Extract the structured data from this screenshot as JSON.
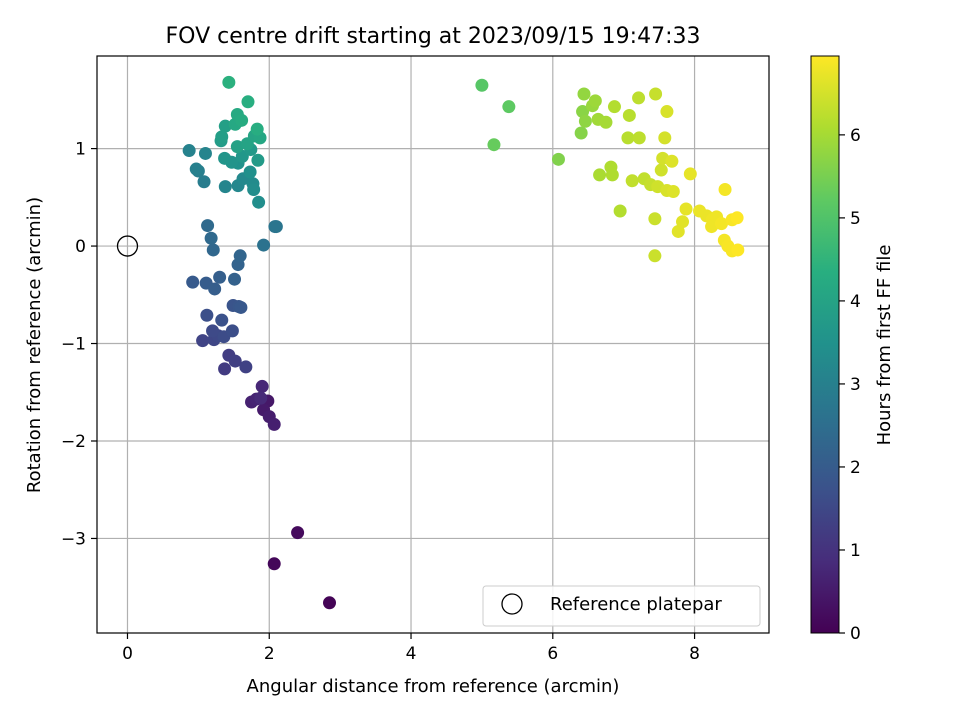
{
  "chart_data": {
    "type": "scatter",
    "title": "FOV centre drift starting at 2023/09/15 19:47:33",
    "xlabel": "Angular distance from reference (arcmin)",
    "ylabel": "Rotation from reference (arcmin)",
    "xlim": [
      -0.43,
      9.05
    ],
    "ylim": [
      -3.97,
      1.95
    ],
    "x_ticks": [
      0,
      2,
      4,
      6,
      8
    ],
    "x_tick_labels": [
      "0",
      "2",
      "4",
      "6",
      "8"
    ],
    "y_ticks": [
      -3,
      -2,
      -1,
      0,
      1
    ],
    "y_tick_labels": [
      "−3",
      "−2",
      "−1",
      "0",
      "1"
    ],
    "grid": true,
    "legend_position": "bottom-right",
    "legend_label": "Reference platepar",
    "reference_point": {
      "x": 0,
      "y": 0
    },
    "colorbar": {
      "label": "Hours from first FF file",
      "colormap": "viridis",
      "range": [
        0,
        6.95
      ],
      "ticks": [
        0,
        1,
        2,
        3,
        4,
        5,
        6
      ],
      "tick_labels": [
        "0",
        "1",
        "2",
        "3",
        "4",
        "5",
        "6"
      ]
    },
    "points": [
      [
        2.85,
        -3.66,
        0.05
      ],
      [
        2.07,
        -3.26,
        0.12
      ],
      [
        2.4,
        -2.94,
        0.18
      ],
      [
        1.98,
        -1.59,
        0.45
      ],
      [
        1.92,
        -1.68,
        0.5
      ],
      [
        2.0,
        -1.75,
        0.55
      ],
      [
        2.07,
        -1.83,
        0.6
      ],
      [
        1.75,
        -1.6,
        0.65
      ],
      [
        1.82,
        -1.57,
        0.7
      ],
      [
        1.9,
        -1.44,
        0.75
      ],
      [
        1.88,
        -1.56,
        0.8
      ],
      [
        1.37,
        -1.26,
        1.2
      ],
      [
        1.43,
        -1.12,
        1.25
      ],
      [
        1.52,
        -1.18,
        1.3
      ],
      [
        1.67,
        -1.24,
        1.35
      ],
      [
        1.06,
        -0.97,
        1.4
      ],
      [
        1.22,
        -0.96,
        1.45
      ],
      [
        1.28,
        -0.92,
        1.5
      ],
      [
        1.2,
        -0.87,
        1.55
      ],
      [
        1.36,
        -0.93,
        1.6
      ],
      [
        1.48,
        -0.87,
        1.65
      ],
      [
        1.12,
        -0.71,
        1.7
      ],
      [
        1.33,
        -0.76,
        1.75
      ],
      [
        1.49,
        -0.61,
        1.8
      ],
      [
        1.57,
        -0.62,
        1.85
      ],
      [
        1.6,
        -0.63,
        1.9
      ],
      [
        0.92,
        -0.37,
        1.95
      ],
      [
        1.11,
        -0.38,
        2.0
      ],
      [
        1.23,
        -0.44,
        2.05
      ],
      [
        1.3,
        -0.32,
        2.1
      ],
      [
        1.51,
        -0.34,
        2.15
      ],
      [
        1.56,
        -0.19,
        2.2
      ],
      [
        1.59,
        -0.1,
        2.25
      ],
      [
        1.21,
        -0.04,
        2.3
      ],
      [
        1.18,
        0.08,
        2.35
      ],
      [
        1.13,
        0.21,
        2.4
      ],
      [
        1.92,
        0.01,
        2.6
      ],
      [
        2.08,
        0.2,
        2.65
      ],
      [
        2.1,
        0.2,
        2.7
      ],
      [
        1.08,
        0.66,
        2.9
      ],
      [
        1.0,
        0.77,
        2.95
      ],
      [
        0.97,
        0.79,
        3.0
      ],
      [
        0.87,
        0.98,
        3.05
      ],
      [
        1.1,
        0.95,
        3.1
      ],
      [
        1.38,
        0.61,
        3.15
      ],
      [
        1.56,
        0.62,
        3.2
      ],
      [
        1.63,
        0.69,
        3.25
      ],
      [
        1.77,
        0.64,
        3.3
      ],
      [
        1.78,
        0.58,
        3.35
      ],
      [
        1.85,
        0.45,
        3.4
      ],
      [
        1.73,
        0.76,
        3.45
      ],
      [
        1.56,
        0.85,
        3.5
      ],
      [
        1.47,
        0.86,
        3.55
      ],
      [
        1.37,
        0.9,
        3.6
      ],
      [
        1.62,
        0.92,
        3.65
      ],
      [
        1.74,
        0.99,
        3.7
      ],
      [
        1.84,
        0.88,
        3.75
      ],
      [
        1.32,
        1.08,
        3.8
      ],
      [
        1.33,
        1.12,
        3.85
      ],
      [
        1.38,
        1.23,
        3.9
      ],
      [
        1.55,
        1.02,
        3.95
      ],
      [
        1.69,
        1.05,
        4.0
      ],
      [
        1.79,
        1.13,
        4.05
      ],
      [
        1.87,
        1.11,
        4.1
      ],
      [
        1.52,
        1.25,
        4.15
      ],
      [
        1.55,
        1.35,
        4.2
      ],
      [
        1.61,
        1.29,
        4.25
      ],
      [
        1.83,
        1.2,
        4.3
      ],
      [
        1.7,
        1.48,
        4.35
      ],
      [
        1.43,
        1.68,
        4.4
      ],
      [
        5.0,
        1.65,
        5.1
      ],
      [
        5.38,
        1.43,
        5.2
      ],
      [
        5.17,
        1.04,
        5.3
      ],
      [
        6.08,
        0.89,
        5.6
      ],
      [
        6.4,
        1.16,
        5.65
      ],
      [
        6.42,
        1.38,
        5.7
      ],
      [
        6.46,
        1.28,
        5.75
      ],
      [
        6.44,
        1.56,
        5.8
      ],
      [
        6.56,
        1.44,
        5.85
      ],
      [
        6.6,
        1.49,
        5.9
      ],
      [
        6.64,
        1.3,
        5.95
      ],
      [
        6.75,
        1.27,
        6.0
      ],
      [
        6.66,
        0.73,
        6.05
      ],
      [
        6.82,
        0.81,
        6.1
      ],
      [
        6.84,
        0.73,
        6.1
      ],
      [
        6.87,
        1.43,
        6.15
      ],
      [
        6.95,
        0.36,
        6.15
      ],
      [
        7.06,
        1.11,
        6.2
      ],
      [
        7.08,
        1.34,
        6.2
      ],
      [
        7.21,
        1.52,
        6.25
      ],
      [
        7.22,
        1.11,
        6.25
      ],
      [
        7.12,
        0.67,
        6.3
      ],
      [
        7.29,
        0.69,
        6.3
      ],
      [
        7.38,
        0.63,
        6.35
      ],
      [
        7.45,
        1.56,
        6.35
      ],
      [
        7.44,
        0.28,
        6.4
      ],
      [
        7.44,
        -0.1,
        6.4
      ],
      [
        7.48,
        0.61,
        6.45
      ],
      [
        7.53,
        0.78,
        6.45
      ],
      [
        7.55,
        0.9,
        6.5
      ],
      [
        7.58,
        1.11,
        6.5
      ],
      [
        7.61,
        1.38,
        6.55
      ],
      [
        7.61,
        0.57,
        6.55
      ],
      [
        7.68,
        0.87,
        6.6
      ],
      [
        7.7,
        0.56,
        6.6
      ],
      [
        7.77,
        0.15,
        6.65
      ],
      [
        7.83,
        0.25,
        6.65
      ],
      [
        7.88,
        0.38,
        6.7
      ],
      [
        7.94,
        0.74,
        6.7
      ],
      [
        8.07,
        0.36,
        6.75
      ],
      [
        8.17,
        0.31,
        6.75
      ],
      [
        8.25,
        0.27,
        6.8
      ],
      [
        8.24,
        0.2,
        6.8
      ],
      [
        8.31,
        0.3,
        6.8
      ],
      [
        8.38,
        0.23,
        6.85
      ],
      [
        8.42,
        0.06,
        6.85
      ],
      [
        8.43,
        0.58,
        6.85
      ],
      [
        8.47,
        0.0,
        6.9
      ],
      [
        8.53,
        0.27,
        6.9
      ],
      [
        8.53,
        -0.05,
        6.9
      ],
      [
        8.6,
        0.29,
        6.95
      ],
      [
        8.61,
        -0.04,
        6.95
      ]
    ]
  }
}
